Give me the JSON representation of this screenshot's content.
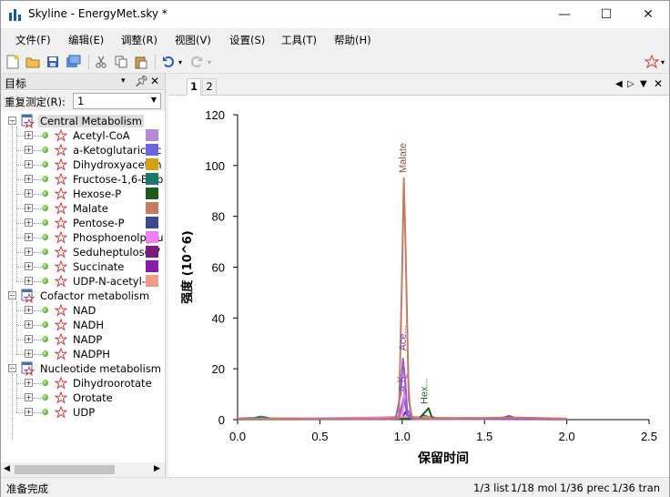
{
  "window": {
    "title": "Skyline - EnergyMet.sky *",
    "minimize": "—",
    "maximize": "☐",
    "close": "✕"
  },
  "menu": [
    {
      "label": "文件(F)"
    },
    {
      "label": "编辑(E)"
    },
    {
      "label": "调整(R)"
    },
    {
      "label": "视图(V)"
    },
    {
      "label": "设置(S)"
    },
    {
      "label": "工具(T)"
    },
    {
      "label": "帮助(H)"
    }
  ],
  "targets_panel": {
    "title": "目标",
    "replicate_label": "重复测定(R):",
    "replicate_value": "1",
    "groups": [
      {
        "name": "Central Metabolism",
        "selected": true,
        "items": [
          {
            "label": "Acetyl-CoA",
            "color": "#b48ad8"
          },
          {
            "label": "a-Ketoglutaric ac",
            "color": "#6c63e0"
          },
          {
            "label": "Dihydroxyaceton",
            "color": "#d4a017"
          },
          {
            "label": "Fructose-1,6-Bisp",
            "color": "#1a7a6a"
          },
          {
            "label": "Hexose-P",
            "color": "#1e5a1e"
          },
          {
            "label": "Malate",
            "color": "#c47b62"
          },
          {
            "label": "Pentose-P",
            "color": "#3a4a8a"
          },
          {
            "label": "Phosphoenolpyru",
            "color": "#f07ef0"
          },
          {
            "label": "Seduheptulose 7",
            "color": "#7a1a7a"
          },
          {
            "label": "Succinate",
            "color": "#8a1aa8"
          },
          {
            "label": "UDP-N-acetyl-D-",
            "color": "#f09a8a"
          }
        ]
      },
      {
        "name": "Cofactor metabolism",
        "selected": false,
        "items": [
          {
            "label": "NAD",
            "color": null
          },
          {
            "label": "NADH",
            "color": null
          },
          {
            "label": "NADP",
            "color": null
          },
          {
            "label": "NADPH",
            "color": null
          }
        ]
      },
      {
        "name": "Nucleotide metabolism",
        "selected": false,
        "items": [
          {
            "label": "Dihydroorotate",
            "color": null
          },
          {
            "label": "Orotate",
            "color": null
          },
          {
            "label": "UDP",
            "color": null
          }
        ]
      }
    ]
  },
  "graph_tabs": [
    {
      "label": "1",
      "active": true
    },
    {
      "label": "2",
      "active": false
    }
  ],
  "chart_data": {
    "type": "line",
    "xlabel": "保留时间",
    "ylabel": "强度 (10^6)",
    "xlim": [
      0,
      2.5
    ],
    "ylim": [
      0,
      120
    ],
    "x_ticks": [
      "0.0",
      "0.5",
      "1.0",
      "1.5",
      "2.0",
      "2.5"
    ],
    "y_ticks": [
      "0",
      "20",
      "40",
      "60",
      "80",
      "100",
      "120"
    ],
    "series": [
      {
        "name": "Malate",
        "color": "#c47b62",
        "points": [
          [
            0,
            0.3
          ],
          [
            0.9,
            0.4
          ],
          [
            0.98,
            0.8
          ],
          [
            1.0,
            60
          ],
          [
            1.01,
            95
          ],
          [
            1.02,
            70
          ],
          [
            1.04,
            8
          ],
          [
            1.06,
            1
          ],
          [
            1.1,
            0.5
          ],
          [
            1.5,
            0.6
          ],
          [
            1.65,
            0.9
          ],
          [
            2.0,
            0.4
          ]
        ]
      },
      {
        "name": "Acetyl-CoA",
        "color": "#9a5ad0",
        "points": [
          [
            0,
            0.2
          ],
          [
            0.96,
            0.3
          ],
          [
            0.99,
            10
          ],
          [
            1.005,
            24
          ],
          [
            1.02,
            14
          ],
          [
            1.03,
            4
          ],
          [
            1.06,
            0.4
          ],
          [
            2.0,
            0.2
          ]
        ]
      },
      {
        "name": "Phosphoenolpyru",
        "color": "#f07ef0",
        "points": [
          [
            0,
            0.1
          ],
          [
            1.0,
            1.0
          ],
          [
            1.02,
            16
          ],
          [
            1.035,
            18
          ],
          [
            1.05,
            2
          ],
          [
            1.07,
            0.3
          ],
          [
            2.0,
            0.1
          ]
        ]
      },
      {
        "name": "a-Ketoglutaric ac",
        "color": "#6c63e0",
        "points": [
          [
            0,
            0.2
          ],
          [
            0.98,
            0.4
          ],
          [
            1.0,
            6
          ],
          [
            1.01,
            9
          ],
          [
            1.03,
            2
          ],
          [
            1.06,
            0.3
          ],
          [
            2.0,
            0.2
          ]
        ]
      },
      {
        "name": "Hexose-P",
        "color": "#1e5a1e",
        "points": [
          [
            0,
            0.1
          ],
          [
            1.1,
            0.2
          ],
          [
            1.14,
            3
          ],
          [
            1.16,
            4.5
          ],
          [
            1.18,
            1
          ],
          [
            1.22,
            0.2
          ],
          [
            2.0,
            0.1
          ]
        ]
      },
      {
        "name": "UDP-N-acetyl-D-",
        "color": "#f09a8a",
        "points": [
          [
            0,
            0.3
          ],
          [
            0.3,
            0.5
          ],
          [
            0.6,
            0.3
          ],
          [
            1.0,
            1.2
          ],
          [
            1.3,
            0.6
          ],
          [
            1.7,
            0.5
          ],
          [
            2.0,
            0.4
          ]
        ]
      },
      {
        "name": "Succinate",
        "color": "#8a1aa8",
        "points": [
          [
            0,
            0.2
          ],
          [
            1.0,
            0.5
          ],
          [
            1.02,
            3
          ],
          [
            1.04,
            0.5
          ],
          [
            1.6,
            0.6
          ],
          [
            1.65,
            1.4
          ],
          [
            1.7,
            0.5
          ],
          [
            2.0,
            0.3
          ]
        ]
      },
      {
        "name": "Fructose-1,6-Bisp",
        "color": "#1a7a6a",
        "points": [
          [
            0,
            0.4
          ],
          [
            0.1,
            0.6
          ],
          [
            0.14,
            1.2
          ],
          [
            0.2,
            0.5
          ],
          [
            1.1,
            0.5
          ],
          [
            1.13,
            1.6
          ],
          [
            1.2,
            0.4
          ],
          [
            2.0,
            0.3
          ]
        ]
      }
    ],
    "peak_labels": [
      {
        "text": "Malate",
        "x": 1.0,
        "y": 96,
        "color": "#8a5a48"
      },
      {
        "text": "Ace...",
        "x": 1.0,
        "y": 26,
        "color": "#7a3ab0"
      },
      {
        "text": "a-K...",
        "x": 0.99,
        "y": 10,
        "color": "#5a52c8"
      },
      {
        "text": "Hex...",
        "x": 1.13,
        "y": 5,
        "color": "#2a6a2a"
      }
    ]
  },
  "status": {
    "ready": "准备完成",
    "list": "1/3 list",
    "mol": "1/18 mol",
    "prec": "1/36 prec",
    "tran": "1/36 tran"
  }
}
